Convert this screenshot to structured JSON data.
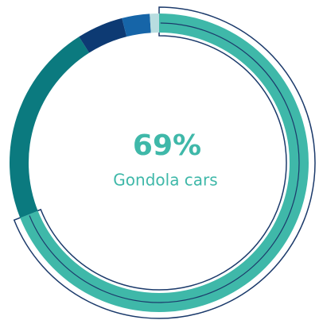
{
  "chart_data": {
    "type": "donut",
    "categories": [
      "Gondola cars",
      null,
      null,
      null,
      null
    ],
    "values": [
      69,
      22,
      5,
      3,
      1
    ],
    "value_labels": [
      "69%",
      null,
      null,
      null,
      null
    ],
    "colors": [
      "#3fb8a9",
      "#0b7a7f",
      "#0d3a73",
      "#1665a8",
      "#b8dde0"
    ],
    "highlight": 0,
    "highlight_outline_color": "#1b3a6b"
  }
}
